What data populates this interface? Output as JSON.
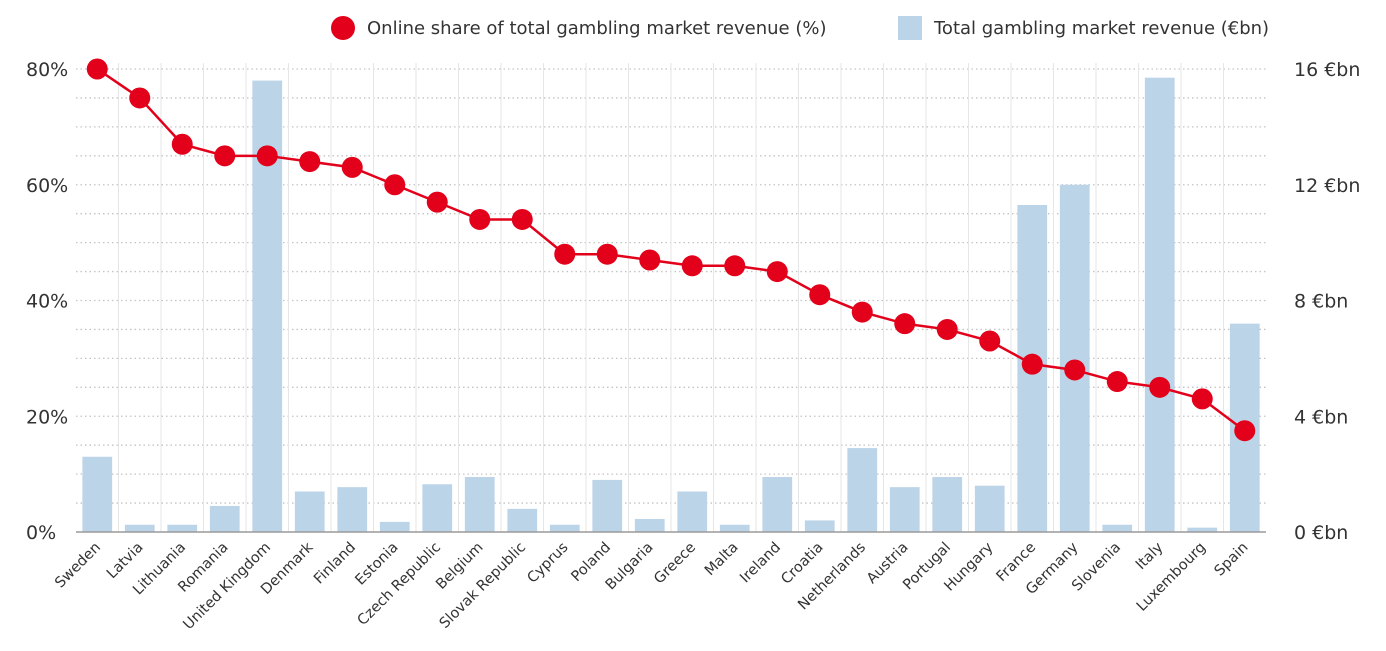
{
  "chart_data": {
    "type": "bar+line",
    "title": "",
    "categories": [
      "Sweden",
      "Latvia",
      "Lithuania",
      "Romania",
      "United Kingdom",
      "Denmark",
      "Finland",
      "Estonia",
      "Czech Republic",
      "Belgium",
      "Slovak Republic",
      "Cyprus",
      "Poland",
      "Bulgaria",
      "Greece",
      "Malta",
      "Ireland",
      "Croatia",
      "Netherlands",
      "Austria",
      "Portugal",
      "Hungary",
      "France",
      "Germany",
      "Slovenia",
      "Italy",
      "Luxembourg",
      "Spain"
    ],
    "series": [
      {
        "name": "Online share of total gambling market revenue (%)",
        "type": "line",
        "axis": "left",
        "color": "#e2001a",
        "values": [
          80,
          75,
          67,
          65,
          65,
          64,
          63,
          60,
          57,
          54,
          54,
          48,
          48,
          47,
          46,
          46,
          45,
          41,
          38,
          36,
          35,
          33,
          29,
          28,
          26,
          25,
          23,
          17.5
        ]
      },
      {
        "name": "Total gambling market revenue (€bn)",
        "type": "bar",
        "axis": "right",
        "color": "#bcd4e8",
        "values": [
          2.6,
          0.25,
          0.25,
          0.9,
          15.6,
          1.4,
          1.55,
          0.35,
          1.65,
          1.9,
          0.8,
          0.25,
          1.8,
          0.45,
          1.4,
          0.25,
          1.9,
          0.4,
          2.9,
          1.55,
          1.9,
          1.6,
          11.3,
          12.0,
          0.25,
          15.7,
          0.15,
          7.2
        ]
      }
    ],
    "y_left": {
      "ylim": [
        0,
        80
      ],
      "ticks": [
        0,
        20,
        40,
        60,
        80
      ],
      "tick_labels": [
        "0%",
        "20%",
        "40%",
        "60%",
        "80%"
      ]
    },
    "y_right": {
      "ylim": [
        0,
        16
      ],
      "ticks": [
        0,
        4,
        8,
        12,
        16
      ],
      "tick_labels": [
        "0 €bn",
        "4 €bn",
        "8 €bn",
        "12 €bn",
        "16 €bn"
      ]
    },
    "grid": true,
    "legend_position": "top"
  }
}
